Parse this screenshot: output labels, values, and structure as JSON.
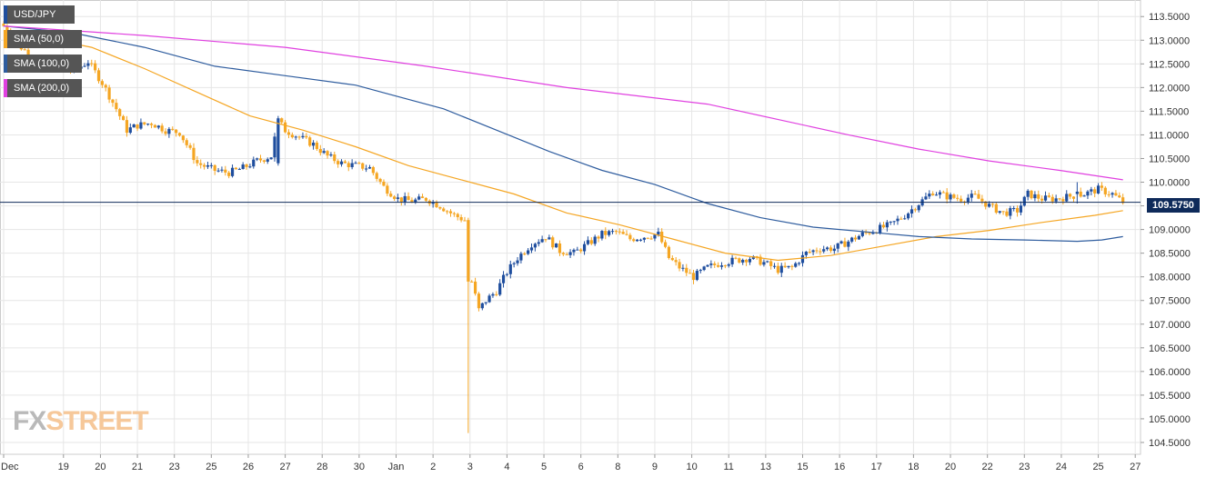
{
  "colors": {
    "up": "#1f4e9e",
    "down": "#f5a623",
    "sma50": "#f5a623",
    "sma100": "#2e5c9e",
    "sma200": "#e040e0",
    "grid": "#e6e6e6",
    "priceline": "#0e2a5a"
  },
  "legend": {
    "symbol": "USD/JPY",
    "sma50": "SMA (50,0)",
    "sma100": "SMA (100,0)",
    "sma200": "SMA (200,0)"
  },
  "price_label": "109.5750",
  "logo": {
    "fx": "FX",
    "street": "STREET"
  },
  "chart_data": {
    "type": "candlestick",
    "title": "",
    "xlabel": "",
    "ylabel": "",
    "ylim": [
      104.25,
      113.85
    ],
    "grid": true,
    "legend_position": "top-left",
    "current_price": 109.575,
    "y_ticks": [
      "113.5000",
      "113.0000",
      "112.5000",
      "112.0000",
      "111.5000",
      "111.0000",
      "110.5000",
      "110.0000",
      "109.5000",
      "109.0000",
      "108.5000",
      "108.0000",
      "107.5000",
      "107.0000",
      "106.5000",
      "106.0000",
      "105.5000",
      "105.0000",
      "104.5000"
    ],
    "x_ticks": [
      {
        "label": "Dec",
        "i": 0
      },
      {
        "label": "19",
        "i": 17
      },
      {
        "label": "20",
        "i": 27.5
      },
      {
        "label": "21",
        "i": 38
      },
      {
        "label": "23",
        "i": 48.5
      },
      {
        "label": "25",
        "i": 59
      },
      {
        "label": "26",
        "i": 69.5
      },
      {
        "label": "27",
        "i": 80
      },
      {
        "label": "28",
        "i": 90.5
      },
      {
        "label": "30",
        "i": 101
      },
      {
        "label": "Jan",
        "i": 111.5
      },
      {
        "label": "2",
        "i": 122
      },
      {
        "label": "3",
        "i": 132.5
      },
      {
        "label": "4",
        "i": 143
      },
      {
        "label": "5",
        "i": 153.5
      },
      {
        "label": "6",
        "i": 164
      },
      {
        "label": "8",
        "i": 174.5
      },
      {
        "label": "9",
        "i": 185
      },
      {
        "label": "10",
        "i": 195.5
      },
      {
        "label": "11",
        "i": 206
      },
      {
        "label": "13",
        "i": 216.5
      },
      {
        "label": "15",
        "i": 227
      },
      {
        "label": "16",
        "i": 237.5
      },
      {
        "label": "17",
        "i": 248
      },
      {
        "label": "18",
        "i": 258.5
      },
      {
        "label": "20",
        "i": 269
      },
      {
        "label": "22",
        "i": 279.5
      },
      {
        "label": "23",
        "i": 290
      },
      {
        "label": "24",
        "i": 300.5
      },
      {
        "label": "25",
        "i": 311
      },
      {
        "label": "27",
        "i": 321.5
      }
    ],
    "close_path": [
      [
        0,
        113.3
      ],
      [
        5,
        112.85
      ],
      [
        10,
        112.55
      ],
      [
        15,
        112.4
      ],
      [
        20,
        112.35
      ],
      [
        24,
        112.55
      ],
      [
        28,
        112.1
      ],
      [
        32,
        111.55
      ],
      [
        35,
        111.1
      ],
      [
        38,
        111.2
      ],
      [
        42,
        111.25
      ],
      [
        46,
        111.1
      ],
      [
        50,
        111.05
      ],
      [
        55,
        110.4
      ],
      [
        60,
        110.25
      ],
      [
        64,
        110.2
      ],
      [
        68,
        110.3
      ],
      [
        72,
        110.45
      ],
      [
        76,
        110.55
      ],
      [
        78,
        111.3
      ],
      [
        80,
        111.1
      ],
      [
        84,
        110.95
      ],
      [
        88,
        110.8
      ],
      [
        92,
        110.55
      ],
      [
        96,
        110.4
      ],
      [
        100,
        110.35
      ],
      [
        104,
        110.3
      ],
      [
        108,
        109.9
      ],
      [
        112,
        109.65
      ],
      [
        116,
        109.6
      ],
      [
        120,
        109.65
      ],
      [
        124,
        109.5
      ],
      [
        128,
        109.3
      ],
      [
        131,
        109.2
      ],
      [
        133,
        107.9
      ],
      [
        135,
        107.3
      ],
      [
        137,
        107.5
      ],
      [
        140,
        107.7
      ],
      [
        143,
        108.1
      ],
      [
        146,
        108.4
      ],
      [
        150,
        108.7
      ],
      [
        154,
        108.85
      ],
      [
        158,
        108.55
      ],
      [
        162,
        108.5
      ],
      [
        166,
        108.7
      ],
      [
        170,
        108.9
      ],
      [
        174,
        108.95
      ],
      [
        178,
        108.8
      ],
      [
        182,
        108.85
      ],
      [
        186,
        108.9
      ],
      [
        189,
        108.4
      ],
      [
        192,
        108.2
      ],
      [
        196,
        108.0
      ],
      [
        200,
        108.2
      ],
      [
        204,
        108.3
      ],
      [
        208,
        108.35
      ],
      [
        212,
        108.4
      ],
      [
        216,
        108.3
      ],
      [
        220,
        108.15
      ],
      [
        224,
        108.2
      ],
      [
        228,
        108.5
      ],
      [
        232,
        108.6
      ],
      [
        236,
        108.6
      ],
      [
        240,
        108.75
      ],
      [
        244,
        108.9
      ],
      [
        248,
        109.0
      ],
      [
        252,
        109.1
      ],
      [
        256,
        109.3
      ],
      [
        260,
        109.55
      ],
      [
        264,
        109.8
      ],
      [
        268,
        109.7
      ],
      [
        272,
        109.65
      ],
      [
        276,
        109.7
      ],
      [
        280,
        109.5
      ],
      [
        284,
        109.35
      ],
      [
        288,
        109.4
      ],
      [
        291,
        109.75
      ],
      [
        295,
        109.65
      ],
      [
        299,
        109.65
      ],
      [
        303,
        109.7
      ],
      [
        307,
        109.75
      ],
      [
        311,
        109.85
      ],
      [
        315,
        109.75
      ],
      [
        318,
        109.58
      ]
    ],
    "series": [
      {
        "name": "SMA (50,0)",
        "color": "#f5a623",
        "values": [
          [
            0,
            113.1
          ],
          [
            15,
            113.0
          ],
          [
            25,
            112.85
          ],
          [
            40,
            112.4
          ],
          [
            55,
            111.9
          ],
          [
            70,
            111.4
          ],
          [
            85,
            111.1
          ],
          [
            100,
            110.75
          ],
          [
            115,
            110.35
          ],
          [
            130,
            110.05
          ],
          [
            145,
            109.75
          ],
          [
            160,
            109.35
          ],
          [
            175,
            109.1
          ],
          [
            190,
            108.8
          ],
          [
            205,
            108.5
          ],
          [
            220,
            108.35
          ],
          [
            235,
            108.45
          ],
          [
            250,
            108.65
          ],
          [
            265,
            108.85
          ],
          [
            280,
            108.98
          ],
          [
            295,
            109.15
          ],
          [
            310,
            109.3
          ],
          [
            318,
            109.4
          ]
        ]
      },
      {
        "name": "SMA (100,0)",
        "color": "#2e5c9e",
        "values": [
          [
            0,
            113.3
          ],
          [
            20,
            113.15
          ],
          [
            40,
            112.85
          ],
          [
            60,
            112.45
          ],
          [
            80,
            112.25
          ],
          [
            100,
            112.05
          ],
          [
            110,
            111.85
          ],
          [
            125,
            111.55
          ],
          [
            140,
            111.1
          ],
          [
            155,
            110.65
          ],
          [
            170,
            110.25
          ],
          [
            185,
            109.95
          ],
          [
            200,
            109.55
          ],
          [
            215,
            109.25
          ],
          [
            230,
            109.05
          ],
          [
            245,
            108.95
          ],
          [
            260,
            108.85
          ],
          [
            275,
            108.8
          ],
          [
            290,
            108.78
          ],
          [
            305,
            108.75
          ],
          [
            312,
            108.78
          ],
          [
            318,
            108.85
          ]
        ]
      },
      {
        "name": "SMA (200,0)",
        "color": "#e040e0",
        "values": [
          [
            0,
            113.3
          ],
          [
            40,
            113.1
          ],
          [
            80,
            112.85
          ],
          [
            120,
            112.45
          ],
          [
            160,
            112.0
          ],
          [
            200,
            111.65
          ],
          [
            240,
            111.0
          ],
          [
            260,
            110.7
          ],
          [
            280,
            110.45
          ],
          [
            300,
            110.25
          ],
          [
            318,
            110.05
          ]
        ]
      }
    ],
    "special_wicks": [
      {
        "i": 132,
        "open": 109.2,
        "close": 107.9,
        "high": 109.25,
        "low": 104.7
      },
      {
        "i": 78,
        "open": 110.4,
        "close": 111.35,
        "high": 111.4,
        "low": 110.35
      },
      {
        "i": 305,
        "open": 109.75,
        "close": 109.8,
        "high": 110.0,
        "low": 109.55
      }
    ]
  }
}
